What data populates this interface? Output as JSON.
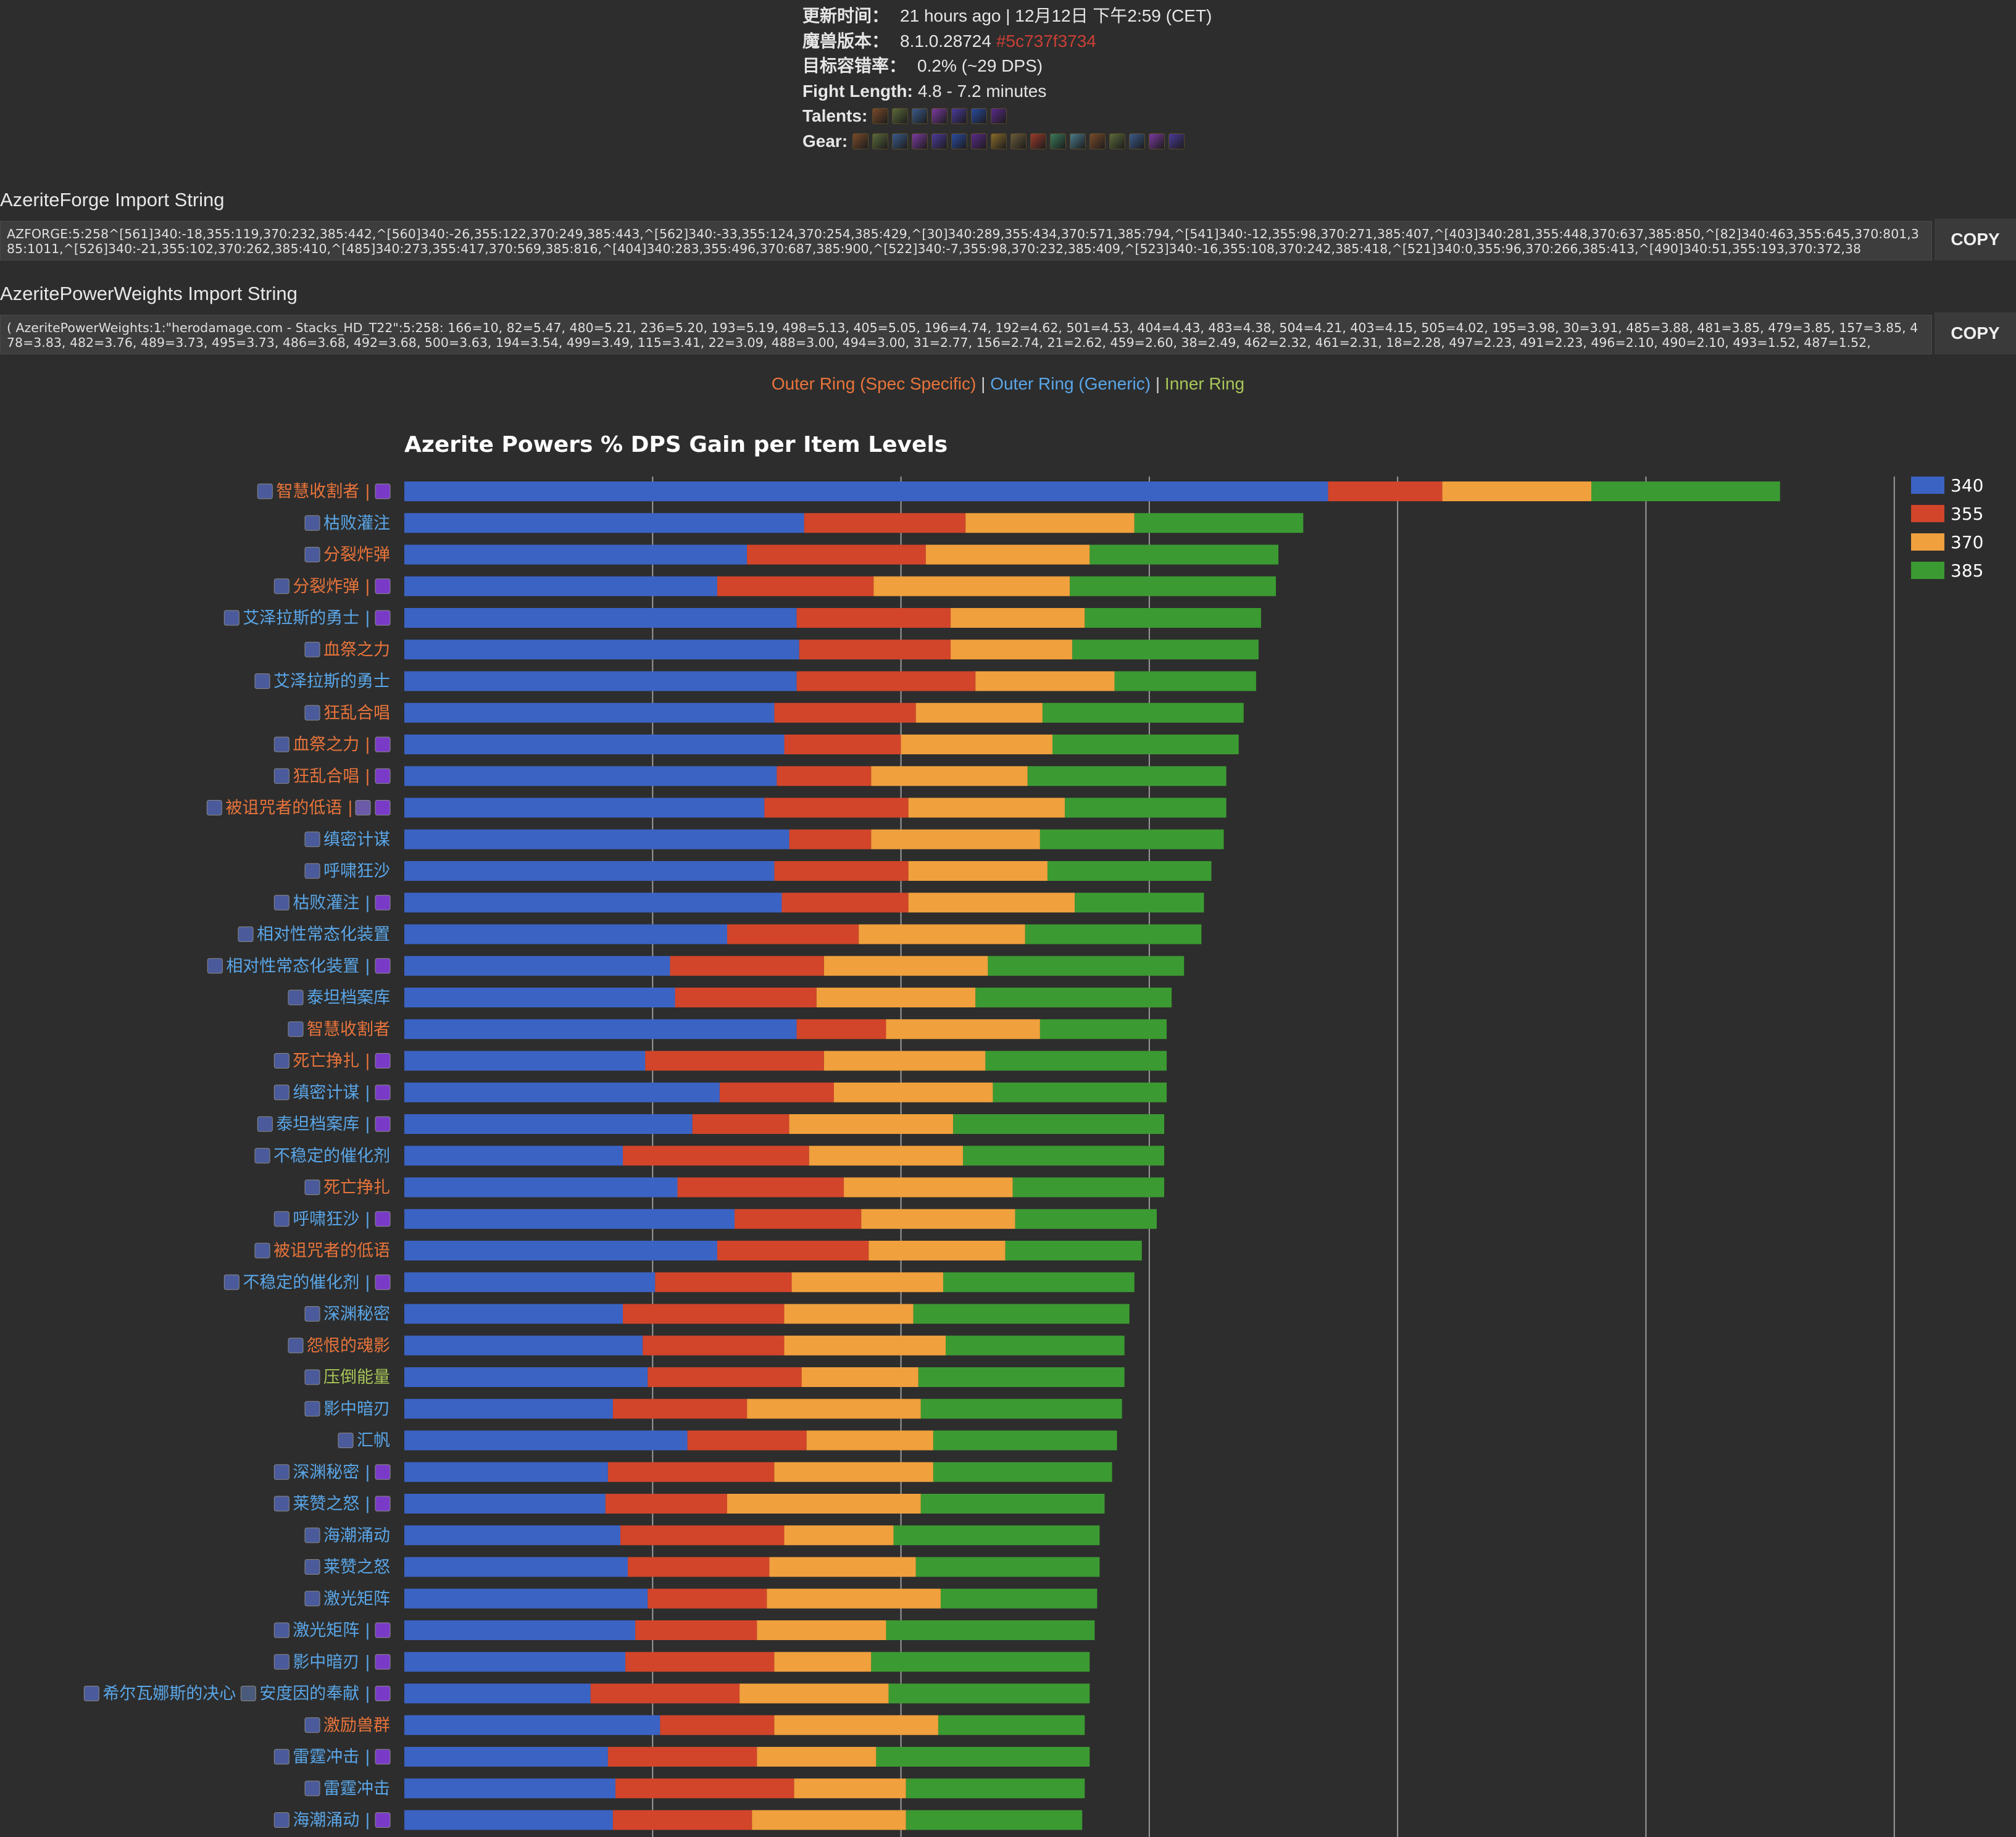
{
  "info": {
    "update_label": "更新时间：",
    "update_value": "21 hours ago | 12月12日 下午2:59 (CET)",
    "version_label": "魔兽版本：",
    "version_value": "8.1.0.28724",
    "version_hash": "#5c737f3734",
    "tolerance_label": "目标容错率：",
    "tolerance_value": "0.2% (~29 DPS)",
    "fight_label": "Fight Length:",
    "fight_value": "4.8 - 7.2 minutes",
    "talents_label": "Talents:",
    "gear_label": "Gear:",
    "talent_icons": [
      "talent-icon-1",
      "talent-icon-2",
      "talent-icon-3",
      "talent-icon-4",
      "talent-icon-5",
      "talent-icon-6",
      "talent-icon-7"
    ],
    "gear_icons": [
      "gear-icon-1",
      "gear-icon-2",
      "gear-icon-3",
      "gear-icon-4",
      "gear-icon-5",
      "gear-icon-6",
      "gear-icon-7",
      "gear-icon-8",
      "gear-icon-9",
      "gear-icon-10",
      "gear-icon-11",
      "gear-icon-12",
      "gear-icon-13",
      "gear-icon-14",
      "gear-icon-15",
      "gear-icon-16",
      "gear-icon-17"
    ]
  },
  "forge": {
    "title": "AzeriteForge Import String",
    "value": "AZFORGE:5:258^[561]340:-18,355:119,370:232,385:442,^[560]340:-26,355:122,370:249,385:443,^[562]340:-33,355:124,370:254,385:429,^[30]340:289,355:434,370:571,385:794,^[541]340:-12,355:98,370:271,385:407,^[403]340:281,355:448,370:637,385:850,^[82]340:463,355:645,370:801,385:1011,^[526]340:-21,355:102,370:262,385:410,^[485]340:273,355:417,370:569,385:816,^[404]340:283,355:496,370:687,385:900,^[522]340:-7,355:98,370:232,385:409,^[523]340:-16,355:108,370:242,385:418,^[521]340:0,355:96,370:266,385:413,^[490]340:51,355:193,370:372,38",
    "copy_label": "COPY"
  },
  "weights": {
    "title": "AzeritePowerWeights Import String",
    "value": "( AzeritePowerWeights:1:\"herodamage.com - Stacks_HD_T22\":5:258: 166=10, 82=5.47, 480=5.21, 236=5.20, 193=5.19, 498=5.13, 405=5.05, 196=4.74, 192=4.62, 501=4.53, 404=4.43, 483=4.38, 504=4.21, 403=4.15, 505=4.02, 195=3.98, 30=3.91, 485=3.88, 481=3.85, 479=3.85, 157=3.85, 478=3.83, 482=3.76, 489=3.73, 495=3.73, 486=3.68, 492=3.68, 500=3.63, 194=3.54, 499=3.49, 115=3.41, 22=3.09, 488=3.00, 494=3.00, 31=2.77, 156=2.74, 21=2.62, 459=2.60, 38=2.49, 462=2.32, 461=2.31, 18=2.28, 497=2.23, 491=2.23, 496=2.10, 490=2.10, 493=1.52, 487=1.52,",
    "copy_label": "COPY"
  },
  "ring_legend": {
    "spec": "Outer Ring (Spec Specific)",
    "generic": "Outer Ring (Generic)",
    "inner": "Inner Ring",
    "sep": "|"
  },
  "colors": {
    "s340": "#3b63c4",
    "s355": "#d2452a",
    "s370": "#f0a03c",
    "s385": "#3c9a32",
    "spec": "#e8743b",
    "generic": "#5aa6e8",
    "inner": "#a8c658",
    "grid": "#9a9a9a"
  },
  "chart_data": {
    "type": "bar",
    "stacked": true,
    "orientation": "horizontal",
    "title": "Azerite Powers % DPS Gain per Item Levels",
    "x_range": [
      0,
      6
    ],
    "gridlines": [
      1,
      2,
      3,
      4,
      5,
      6
    ],
    "legend_position": "right",
    "series_names": [
      "340",
      "355",
      "370",
      "385"
    ],
    "rows": [
      {
        "name": "智慧收割者",
        "suffix": " |",
        "ring": "spec",
        "extra_icon": true,
        "values": [
          3.72,
          0.46,
          0.6,
          0.76
        ]
      },
      {
        "name": "枯败灌注",
        "suffix": "",
        "ring": "generic",
        "extra_icon": false,
        "values": [
          1.61,
          0.65,
          0.68,
          0.68
        ]
      },
      {
        "name": "分裂炸弹",
        "suffix": "",
        "ring": "spec",
        "extra_icon": false,
        "values": [
          1.38,
          0.72,
          0.66,
          0.76
        ]
      },
      {
        "name": "分裂炸弹",
        "suffix": " |",
        "ring": "spec",
        "extra_icon": true,
        "values": [
          1.26,
          0.63,
          0.79,
          0.83
        ]
      },
      {
        "name": "艾泽拉斯的勇士",
        "suffix": " |",
        "ring": "generic",
        "extra_icon": true,
        "values": [
          1.58,
          0.62,
          0.54,
          0.71
        ]
      },
      {
        "name": "血祭之力",
        "suffix": "",
        "ring": "spec",
        "extra_icon": false,
        "values": [
          1.59,
          0.61,
          0.49,
          0.75
        ]
      },
      {
        "name": "艾泽拉斯的勇士",
        "suffix": "",
        "ring": "generic",
        "extra_icon": false,
        "values": [
          1.58,
          0.72,
          0.56,
          0.57
        ]
      },
      {
        "name": "狂乱合唱",
        "suffix": "",
        "ring": "spec",
        "extra_icon": false,
        "values": [
          1.49,
          0.57,
          0.51,
          0.81
        ]
      },
      {
        "name": "血祭之力",
        "suffix": " |",
        "ring": "spec",
        "extra_icon": true,
        "values": [
          1.53,
          0.47,
          0.61,
          0.75
        ]
      },
      {
        "name": "狂乱合唱",
        "suffix": " |",
        "ring": "spec",
        "extra_icon": true,
        "values": [
          1.5,
          0.38,
          0.63,
          0.8
        ]
      },
      {
        "name": "被诅咒者的低语",
        "suffix": " |",
        "ring": "spec",
        "extra_icon": true,
        "double_icon": true,
        "values": [
          1.45,
          0.58,
          0.63,
          0.65
        ]
      },
      {
        "name": "缜密计谋",
        "suffix": "",
        "ring": "generic",
        "extra_icon": false,
        "values": [
          1.55,
          0.33,
          0.68,
          0.74
        ]
      },
      {
        "name": "呼啸狂沙",
        "suffix": "",
        "ring": "generic",
        "extra_icon": false,
        "values": [
          1.49,
          0.54,
          0.56,
          0.66
        ]
      },
      {
        "name": "枯败灌注",
        "suffix": " |",
        "ring": "generic",
        "extra_icon": true,
        "values": [
          1.52,
          0.51,
          0.67,
          0.52
        ]
      },
      {
        "name": "相对性常态化装置",
        "suffix": "",
        "ring": "generic",
        "extra_icon": false,
        "values": [
          1.3,
          0.53,
          0.67,
          0.71
        ]
      },
      {
        "name": "相对性常态化装置",
        "suffix": " |",
        "ring": "generic",
        "extra_icon": true,
        "values": [
          1.07,
          0.62,
          0.66,
          0.79
        ]
      },
      {
        "name": "泰坦档案库",
        "suffix": "",
        "ring": "generic",
        "extra_icon": false,
        "values": [
          1.09,
          0.57,
          0.64,
          0.79
        ]
      },
      {
        "name": "智慧收割者",
        "suffix": "",
        "ring": "spec",
        "extra_icon": false,
        "values": [
          1.58,
          0.36,
          0.62,
          0.51
        ]
      },
      {
        "name": "死亡挣扎",
        "suffix": " |",
        "ring": "spec",
        "extra_icon": true,
        "values": [
          0.97,
          0.72,
          0.65,
          0.73
        ]
      },
      {
        "name": "缜密计谋",
        "suffix": " |",
        "ring": "generic",
        "extra_icon": true,
        "values": [
          1.27,
          0.46,
          0.64,
          0.7
        ]
      },
      {
        "name": "泰坦档案库",
        "suffix": " |",
        "ring": "generic",
        "extra_icon": true,
        "values": [
          1.16,
          0.39,
          0.66,
          0.85
        ]
      },
      {
        "name": "不稳定的催化剂",
        "suffix": "",
        "ring": "generic",
        "extra_icon": false,
        "values": [
          0.88,
          0.75,
          0.62,
          0.81
        ]
      },
      {
        "name": "死亡挣扎",
        "suffix": "",
        "ring": "spec",
        "extra_icon": false,
        "values": [
          1.1,
          0.67,
          0.68,
          0.61
        ]
      },
      {
        "name": "呼啸狂沙",
        "suffix": " |",
        "ring": "generic",
        "extra_icon": true,
        "values": [
          1.33,
          0.51,
          0.62,
          0.57
        ]
      },
      {
        "name": "被诅咒者的低语",
        "suffix": "",
        "ring": "spec",
        "extra_icon": false,
        "values": [
          1.26,
          0.61,
          0.55,
          0.55
        ]
      },
      {
        "name": "不稳定的催化剂",
        "suffix": " |",
        "ring": "generic",
        "extra_icon": true,
        "values": [
          1.01,
          0.55,
          0.61,
          0.77
        ]
      },
      {
        "name": "深渊秘密",
        "suffix": "",
        "ring": "generic",
        "extra_icon": false,
        "values": [
          0.88,
          0.65,
          0.52,
          0.87
        ]
      },
      {
        "name": "怨恨的魂影",
        "suffix": "",
        "ring": "spec",
        "extra_icon": false,
        "values": [
          0.96,
          0.57,
          0.65,
          0.72
        ]
      },
      {
        "name": "压倒能量",
        "suffix": "",
        "ring": "inner",
        "extra_icon": false,
        "values": [
          0.98,
          0.62,
          0.47,
          0.83
        ]
      },
      {
        "name": "影中暗刃",
        "suffix": "",
        "ring": "generic",
        "extra_icon": false,
        "values": [
          0.84,
          0.54,
          0.7,
          0.81
        ]
      },
      {
        "name": "汇帆",
        "suffix": "",
        "ring": "generic",
        "extra_icon": false,
        "values": [
          1.14,
          0.48,
          0.51,
          0.74
        ]
      },
      {
        "name": "深渊秘密",
        "suffix": " |",
        "ring": "generic",
        "extra_icon": true,
        "values": [
          0.82,
          0.67,
          0.64,
          0.72
        ]
      },
      {
        "name": "莱赞之怒",
        "suffix": " |",
        "ring": "generic",
        "extra_icon": true,
        "values": [
          0.81,
          0.49,
          0.78,
          0.74
        ]
      },
      {
        "name": "海潮涌动",
        "suffix": "",
        "ring": "generic",
        "extra_icon": false,
        "values": [
          0.87,
          0.66,
          0.44,
          0.83
        ]
      },
      {
        "name": "莱赞之怒",
        "suffix": "",
        "ring": "generic",
        "extra_icon": false,
        "values": [
          0.9,
          0.57,
          0.59,
          0.74
        ]
      },
      {
        "name": "激光矩阵",
        "suffix": "",
        "ring": "generic",
        "extra_icon": false,
        "values": [
          0.98,
          0.48,
          0.7,
          0.63
        ]
      },
      {
        "name": "激光矩阵",
        "suffix": " |",
        "ring": "generic",
        "extra_icon": true,
        "values": [
          0.93,
          0.49,
          0.52,
          0.84
        ]
      },
      {
        "name": "影中暗刃",
        "suffix": " |",
        "ring": "generic",
        "extra_icon": true,
        "values": [
          0.89,
          0.6,
          0.39,
          0.88
        ]
      },
      {
        "name": "希尔瓦娜斯的决心",
        "suffix": "",
        "ring": "generic",
        "extra_icon": false,
        "second_name": "安度因的奉献",
        "second_suffix": " |",
        "values": [
          0.75,
          0.6,
          0.6,
          0.81
        ]
      },
      {
        "name": "激励兽群",
        "suffix": "",
        "ring": "spec",
        "extra_icon": false,
        "values": [
          1.03,
          0.46,
          0.66,
          0.59
        ]
      },
      {
        "name": "雷霆冲击",
        "suffix": " |",
        "ring": "generic",
        "extra_icon": true,
        "values": [
          0.82,
          0.6,
          0.48,
          0.86
        ]
      },
      {
        "name": "雷霆冲击",
        "suffix": "",
        "ring": "generic",
        "extra_icon": false,
        "values": [
          0.85,
          0.72,
          0.45,
          0.72
        ]
      },
      {
        "name": "海潮涌动",
        "suffix": " |",
        "ring": "generic",
        "extra_icon": true,
        "values": [
          0.84,
          0.56,
          0.62,
          0.71
        ]
      }
    ]
  }
}
